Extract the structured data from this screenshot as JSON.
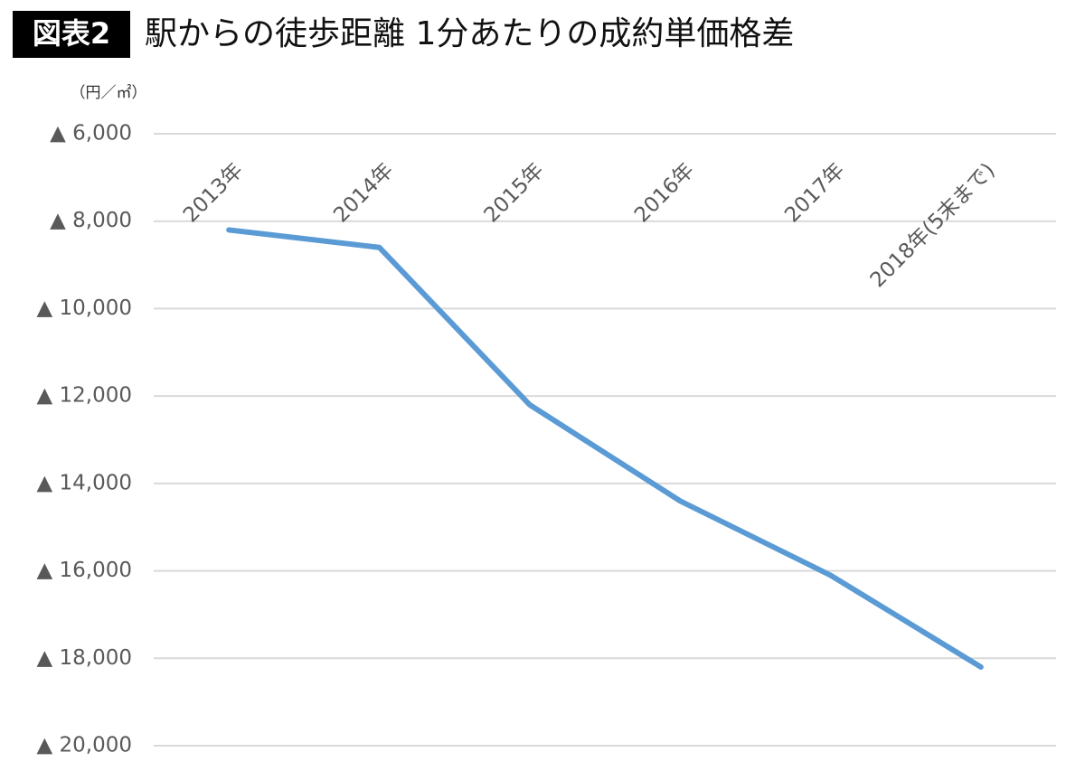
{
  "chart_data": {
    "type": "line",
    "figure_label": "図表2",
    "title": "駅からの徒歩距離 1分あたりの成約単価格差",
    "y_label": "（円／㎡）",
    "categories": [
      "2013年",
      "2014年",
      "2015年",
      "2016年",
      "2017年",
      "2018年(5末まで)"
    ],
    "series": [
      {
        "name": "成約単価格差",
        "color": "#5b9bd5",
        "values": [
          -8200,
          -8600,
          -12200,
          -14400,
          -16100,
          -18200
        ]
      }
    ],
    "ylim": [
      -20000,
      -6000
    ],
    "yticks": [
      {
        "value": -6000,
        "label": "▲ 6,000"
      },
      {
        "value": -8000,
        "label": "▲ 8,000"
      },
      {
        "value": -10000,
        "label": "▲ 10,000"
      },
      {
        "value": -12000,
        "label": "▲ 12,000"
      },
      {
        "value": -14000,
        "label": "▲ 14,000"
      },
      {
        "value": -16000,
        "label": "▲ 16,000"
      },
      {
        "value": -18000,
        "label": "▲ 18,000"
      },
      {
        "value": -20000,
        "label": "▲ 20,000"
      }
    ],
    "grid": true
  }
}
